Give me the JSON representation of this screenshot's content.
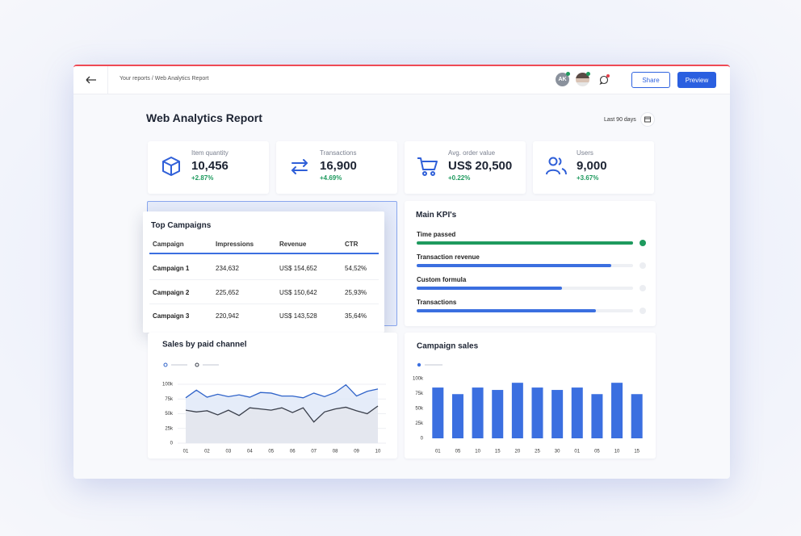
{
  "header": {
    "breadcrumb": "Your reports / Web Analytics Report",
    "avatar": "AK",
    "share": "Share",
    "preview": "Preview"
  },
  "report": {
    "title": "Web Analytics Report",
    "date_range": "Last 90 days"
  },
  "kpis": [
    {
      "label": "Item quantity",
      "value": "10,456",
      "change": "+2.87%"
    },
    {
      "label": "Transactions",
      "value": "16,900",
      "change": "+4.69%"
    },
    {
      "label": "Avg. order value",
      "value": "US$ 20,500",
      "change": "+0.22%"
    },
    {
      "label": "Users",
      "value": "9,000",
      "change": "+3.67%"
    }
  ],
  "table": {
    "title": "Top Campaigns",
    "columns": [
      "Campaign",
      "Impressions",
      "Revenue",
      "CTR"
    ],
    "rows": [
      [
        "Campaign 1",
        "234,632",
        "US$ 154,652",
        "54,52%"
      ],
      [
        "Campaign 2",
        "225,652",
        "US$ 150,642",
        "25,93%"
      ],
      [
        "Campaign 3",
        "220,942",
        "US$ 143,528",
        "35,64%"
      ]
    ]
  },
  "main_kpi": {
    "title": "Main KPI's",
    "items": [
      {
        "name": "Time passed",
        "value": 100,
        "color": "#1e9a5e"
      },
      {
        "name": "Transaction revenue",
        "value": 90,
        "color": "#3b6fe0"
      },
      {
        "name": "Custom formula",
        "value": 67,
        "color": "#3b6fe0"
      },
      {
        "name": "Transactions",
        "value": 83,
        "color": "#3b6fe0"
      }
    ]
  },
  "chart_data": [
    {
      "type": "line",
      "title": "Sales by paid channel",
      "categories": [
        "01",
        null,
        "02",
        null,
        "03",
        null,
        "04",
        null,
        "05",
        null,
        "06",
        null,
        "07",
        null,
        "08",
        null,
        "09",
        null,
        "10"
      ],
      "series": [
        {
          "color": "#2f63c9",
          "fill": "#dfe7f8",
          "values": [
            77000,
            90000,
            78000,
            83000,
            79000,
            82000,
            78000,
            86000,
            85000,
            80000,
            80000,
            77000,
            85000,
            79000,
            86000,
            99000,
            80000,
            88000,
            92000
          ]
        },
        {
          "color": "#3a3f4b",
          "fill": "#e4e6ec",
          "values": [
            56000,
            53000,
            55000,
            48000,
            56000,
            47000,
            60000,
            58000,
            56000,
            60000,
            52000,
            60000,
            36000,
            53000,
            58000,
            61000,
            55000,
            50000,
            63000
          ]
        }
      ],
      "ylim": [
        0,
        100000
      ],
      "yticks": [
        0,
        {
          "value": 25000,
          "label": "25k"
        },
        {
          "value": 50000,
          "label": "50k"
        },
        {
          "value": 75000,
          "label": "75k"
        },
        {
          "value": 100000,
          "label": "100k"
        }
      ],
      "grid": true
    },
    {
      "type": "bar",
      "title": "Campaign sales",
      "categories": [
        "01",
        "05",
        "10",
        "15",
        "20",
        "25",
        "30",
        "01",
        "05",
        "10",
        "15"
      ],
      "color": "#3b6fe0",
      "values": [
        85000,
        74000,
        85000,
        81000,
        93000,
        85000,
        81000,
        85000,
        74000,
        93000,
        74000
      ],
      "ylim": [
        0,
        100000
      ],
      "yticks": [
        0,
        {
          "value": 25000,
          "label": "25k"
        },
        {
          "value": 50000,
          "label": "50k"
        },
        {
          "value": 75000,
          "label": "75k"
        },
        {
          "value": 100000,
          "label": "100k"
        }
      ],
      "grid": false
    }
  ]
}
